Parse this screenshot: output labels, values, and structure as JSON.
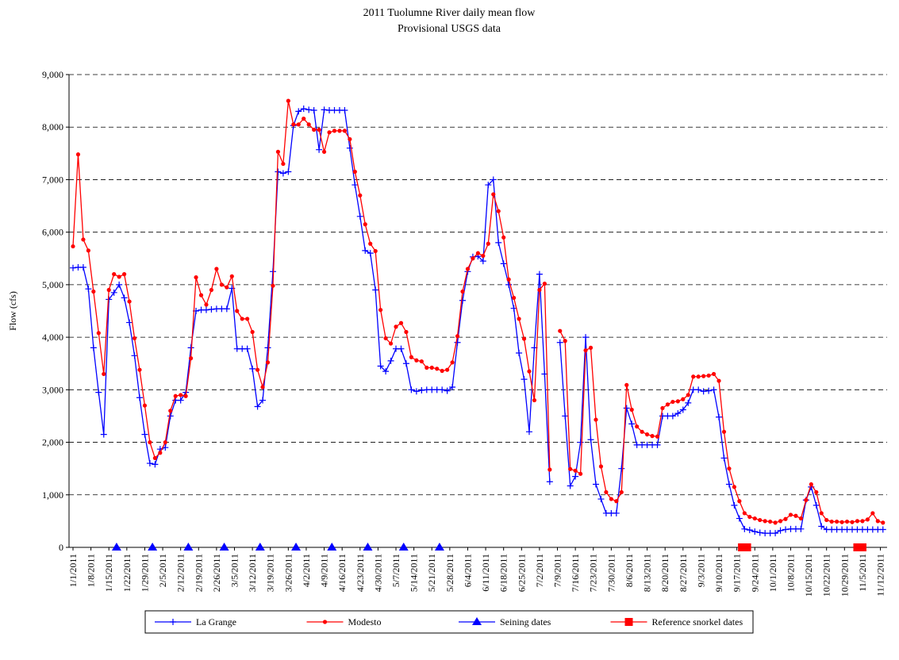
{
  "chart_data": {
    "type": "line",
    "title": "2011 Tuolumne River daily mean flow",
    "subtitle": "Provisional USGS data",
    "y_label": "Flow (cfs)",
    "ylim": [
      0,
      9000
    ],
    "yticks": [
      0,
      {
        "value": 1000,
        "label": "1,000"
      },
      {
        "value": 2000,
        "label": "2,000"
      },
      {
        "value": 3000,
        "label": "3,000"
      },
      {
        "value": 4000,
        "label": "4,000"
      },
      {
        "value": 5000,
        "label": "5,000"
      },
      {
        "value": 6000,
        "label": "6,000"
      },
      {
        "value": 7000,
        "label": "7,000"
      },
      {
        "value": 8000,
        "label": "8,000"
      },
      {
        "value": 9000,
        "label": "9,000"
      }
    ],
    "xlim": [
      "1/1/2011",
      "11/14/2011"
    ],
    "xticks": [
      "1/1/2011",
      "1/8/2011",
      "1/15/2011",
      "1/22/2011",
      "1/29/2011",
      "2/5/2011",
      "2/12/2011",
      "2/19/2011",
      "2/26/2011",
      "3/5/2011",
      "3/12/2011",
      "3/19/2011",
      "3/26/2011",
      "4/2/2011",
      "4/9/2011",
      "4/16/2011",
      "4/23/2011",
      "4/30/2011",
      "5/7/2011",
      "5/14/2011",
      "5/21/2011",
      "5/28/2011",
      "6/4/2011",
      "6/11/2011",
      "6/18/2011",
      "6/25/2011",
      "7/2/2011",
      "7/9/2011",
      "7/16/2011",
      "7/23/2011",
      "7/30/2011",
      "8/6/2011",
      "8/13/2011",
      "8/20/2011",
      "8/27/2011",
      "9/3/2011",
      "9/10/2011",
      "9/17/2011",
      "9/24/2011",
      "10/1/2011",
      "10/8/2011",
      "10/15/2011",
      "10/22/2011",
      "10/29/2011",
      "11/5/2011",
      "11/12/2011"
    ],
    "grid": true,
    "legend": "bottom",
    "x": [
      "1/1/2011",
      "1/3/2011",
      "1/5/2011",
      "1/7/2011",
      "1/9/2011",
      "1/11/2011",
      "1/13/2011",
      "1/15/2011",
      "1/17/2011",
      "1/19/2011",
      "1/21/2011",
      "1/23/2011",
      "1/25/2011",
      "1/27/2011",
      "1/29/2011",
      "1/31/2011",
      "2/2/2011",
      "2/4/2011",
      "2/6/2011",
      "2/8/2011",
      "2/10/2011",
      "2/12/2011",
      "2/14/2011",
      "2/16/2011",
      "2/18/2011",
      "2/20/2011",
      "2/22/2011",
      "2/24/2011",
      "2/26/2011",
      "2/28/2011",
      "3/2/2011",
      "3/4/2011",
      "3/6/2011",
      "3/8/2011",
      "3/10/2011",
      "3/12/2011",
      "3/14/2011",
      "3/16/2011",
      "3/18/2011",
      "3/20/2011",
      "3/22/2011",
      "3/24/2011",
      "3/26/2011",
      "3/28/2011",
      "3/30/2011",
      "4/1/2011",
      "4/3/2011",
      "4/5/2011",
      "4/7/2011",
      "4/9/2011",
      "4/11/2011",
      "4/13/2011",
      "4/15/2011",
      "4/17/2011",
      "4/19/2011",
      "4/21/2011",
      "4/23/2011",
      "4/25/2011",
      "4/27/2011",
      "4/29/2011",
      "5/1/2011",
      "5/3/2011",
      "5/5/2011",
      "5/7/2011",
      "5/9/2011",
      "5/11/2011",
      "5/13/2011",
      "5/15/2011",
      "5/17/2011",
      "5/19/2011",
      "5/21/2011",
      "5/23/2011",
      "5/25/2011",
      "5/27/2011",
      "5/29/2011",
      "5/31/2011",
      "6/2/2011",
      "6/4/2011",
      "6/6/2011",
      "6/8/2011",
      "6/10/2011",
      "6/12/2011",
      "6/14/2011",
      "6/16/2011",
      "6/18/2011",
      "6/20/2011",
      "6/22/2011",
      "6/24/2011",
      "6/26/2011",
      "6/28/2011",
      "6/30/2011",
      "7/2/2011",
      "7/4/2011",
      "7/6/2011",
      "7/8/2011",
      "7/10/2011",
      "7/12/2011",
      "7/14/2011",
      "7/16/2011",
      "7/18/2011",
      "7/20/2011",
      "7/22/2011",
      "7/24/2011",
      "7/26/2011",
      "7/28/2011",
      "7/30/2011",
      "8/1/2011",
      "8/3/2011",
      "8/5/2011",
      "8/7/2011",
      "8/9/2011",
      "8/11/2011",
      "8/13/2011",
      "8/15/2011",
      "8/17/2011",
      "8/19/2011",
      "8/21/2011",
      "8/23/2011",
      "8/25/2011",
      "8/27/2011",
      "8/29/2011",
      "8/31/2011",
      "9/2/2011",
      "9/4/2011",
      "9/6/2011",
      "9/8/2011",
      "9/10/2011",
      "9/12/2011",
      "9/14/2011",
      "9/16/2011",
      "9/18/2011",
      "9/20/2011",
      "9/22/2011",
      "9/24/2011",
      "9/26/2011",
      "9/28/2011",
      "9/30/2011",
      "10/2/2011",
      "10/4/2011",
      "10/6/2011",
      "10/8/2011",
      "10/10/2011",
      "10/12/2011",
      "10/14/2011",
      "10/16/2011",
      "10/18/2011",
      "10/20/2011",
      "10/22/2011",
      "10/24/2011",
      "10/26/2011",
      "10/28/2011",
      "10/30/2011",
      "11/1/2011",
      "11/3/2011",
      "11/5/2011",
      "11/7/2011",
      "11/9/2011",
      "11/11/2011",
      "11/13/2011"
    ],
    "series": [
      {
        "name": "La Grange",
        "color": "#0000ff",
        "marker": "plus",
        "values": [
          5320,
          5330,
          5330,
          4920,
          3800,
          2950,
          2150,
          4720,
          4850,
          5000,
          4750,
          4280,
          3650,
          2850,
          2150,
          1600,
          1580,
          1870,
          1900,
          2500,
          2800,
          2800,
          2950,
          3800,
          4500,
          4520,
          4520,
          4530,
          4540,
          4540,
          4540,
          4930,
          3780,
          3780,
          3780,
          3400,
          2680,
          2800,
          3800,
          5250,
          7150,
          7120,
          7150,
          8030,
          8300,
          8350,
          8330,
          8320,
          7570,
          8330,
          8320,
          8320,
          8320,
          8320,
          7600,
          6900,
          6300,
          5650,
          5600,
          4900,
          3450,
          3350,
          3550,
          3780,
          3780,
          3500,
          3000,
          2970,
          2990,
          3000,
          3000,
          3000,
          3000,
          2980,
          3050,
          3900,
          4700,
          5250,
          5530,
          5540,
          5450,
          6900,
          7000,
          5800,
          5400,
          5000,
          4550,
          3700,
          3200,
          2200,
          3800,
          5200,
          3300,
          1250,
          null,
          3900,
          2500,
          1170,
          1350,
          2000,
          4000,
          2050,
          1200,
          920,
          650,
          650,
          650,
          1500,
          2650,
          2350,
          1950,
          1950,
          1950,
          1950,
          1950,
          2500,
          2500,
          2500,
          2550,
          2620,
          2750,
          3000,
          3000,
          2970,
          2980,
          3000,
          2480,
          1700,
          1200,
          800,
          550,
          350,
          330,
          300,
          280,
          270,
          270,
          270,
          320,
          340,
          350,
          350,
          350,
          900,
          1150,
          800,
          400,
          340,
          340,
          340,
          340,
          340,
          340,
          340,
          340,
          340,
          340,
          340,
          340
        ]
      },
      {
        "name": "Modesto",
        "color": "#ff0000",
        "marker": "circle",
        "values": [
          5730,
          7480,
          5860,
          5650,
          4870,
          4080,
          3300,
          4900,
          5200,
          5150,
          5200,
          4680,
          3980,
          3380,
          2700,
          2000,
          1700,
          1800,
          2000,
          2600,
          2880,
          2900,
          2880,
          3600,
          5140,
          4800,
          4620,
          4900,
          5300,
          5000,
          4950,
          5160,
          4500,
          4350,
          4350,
          4100,
          3380,
          3050,
          3520,
          4980,
          7530,
          7300,
          8500,
          8050,
          8050,
          8160,
          8050,
          7950,
          7950,
          7530,
          7900,
          7930,
          7930,
          7930,
          7770,
          7150,
          6700,
          6150,
          5780,
          5640,
          4520,
          3980,
          3880,
          4200,
          4270,
          4100,
          3620,
          3560,
          3540,
          3420,
          3420,
          3400,
          3360,
          3380,
          3520,
          4020,
          4870,
          5300,
          5500,
          5600,
          5550,
          5780,
          6720,
          6400,
          5900,
          5100,
          4750,
          4350,
          3970,
          3350,
          2800,
          4900,
          5020,
          1480,
          null,
          4120,
          3930,
          1490,
          1460,
          1400,
          3750,
          3800,
          2430,
          1540,
          1050,
          920,
          880,
          1050,
          3090,
          2620,
          2300,
          2200,
          2150,
          2120,
          2110,
          2650,
          2720,
          2770,
          2780,
          2820,
          2900,
          3250,
          3250,
          3260,
          3270,
          3300,
          3170,
          2200,
          1500,
          1150,
          880,
          650,
          580,
          550,
          520,
          500,
          490,
          470,
          500,
          540,
          620,
          600,
          550,
          900,
          1200,
          1050,
          650,
          520,
          490,
          490,
          480,
          490,
          480,
          500,
          500,
          530,
          650,
          500,
          470
        ]
      },
      {
        "name": "Seining dates",
        "color": "#0000ff",
        "marker": "triangle",
        "x": [
          "1/18/2011",
          "2/1/2011",
          "2/15/2011",
          "3/1/2011",
          "3/15/2011",
          "3/29/2011",
          "4/12/2011",
          "4/26/2011",
          "5/10/2011",
          "5/24/2011"
        ],
        "values": [
          0,
          0,
          0,
          0,
          0,
          0,
          0,
          0,
          0,
          0
        ]
      },
      {
        "name": "Reference snorkel dates",
        "color": "#ff0000",
        "marker": "square",
        "x": [
          "9/19/2011",
          "9/20/2011",
          "9/21/2011",
          "11/3/2011",
          "11/4/2011",
          "11/5/2011"
        ],
        "values": [
          0,
          0,
          0,
          0,
          0,
          0
        ]
      }
    ]
  }
}
